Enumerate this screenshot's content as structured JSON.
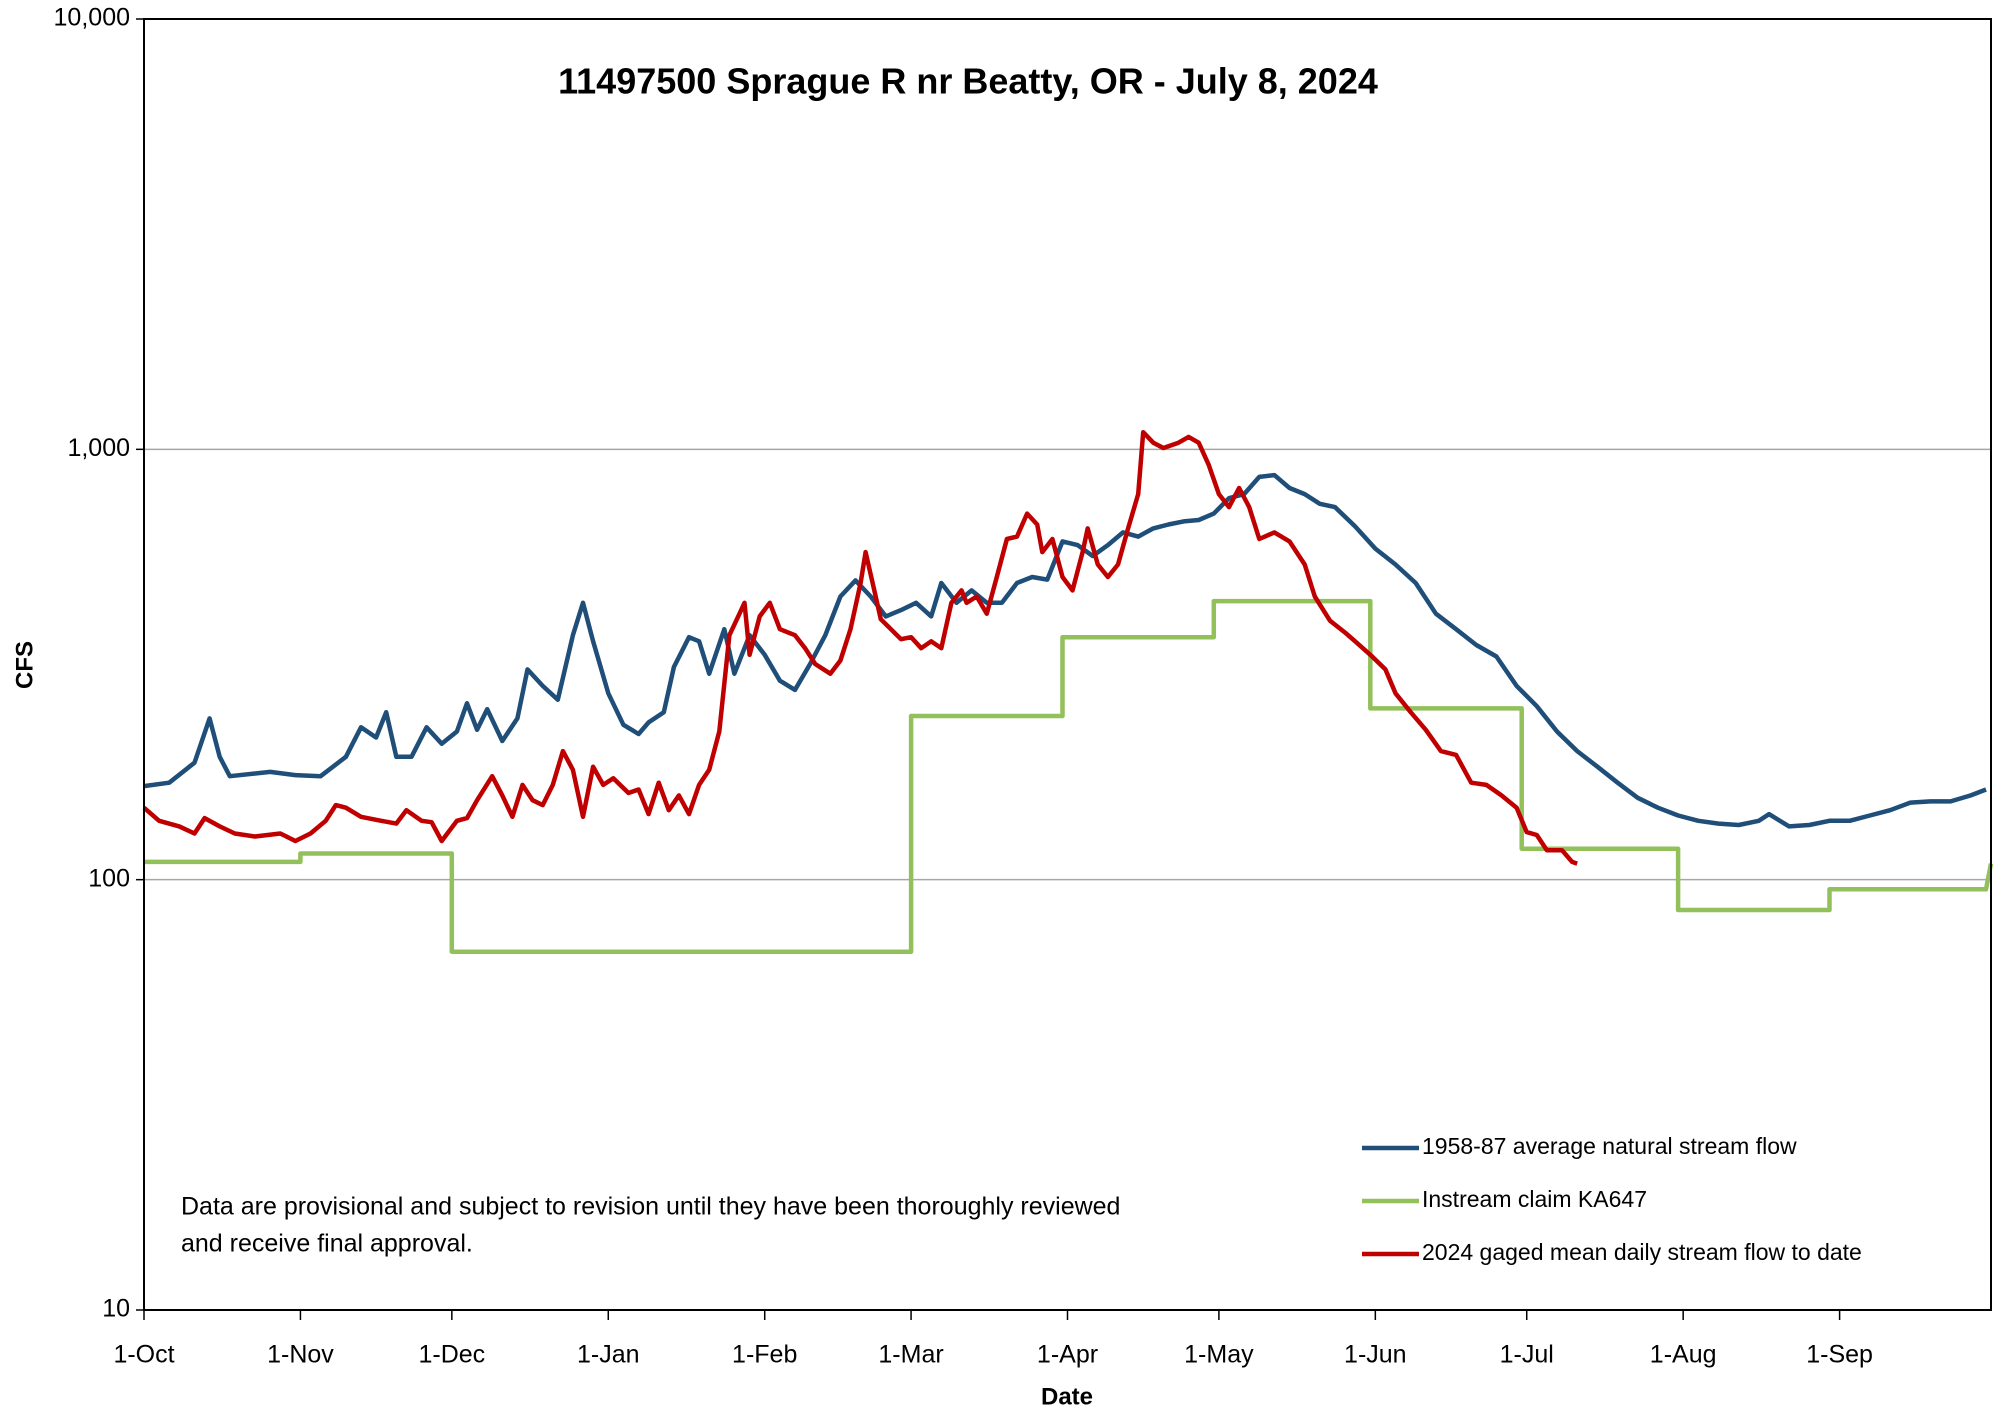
{
  "chart_data": {
    "type": "line",
    "title": "11497500 Sprague R nr Beatty, OR -  July 8, 2024",
    "xlabel": "Date",
    "ylabel": "CFS",
    "annotation": [
      "Data are provisional and subject to revision until they have been thoroughly reviewed",
      "and receive final approval."
    ],
    "log_y": true,
    "grid": true,
    "legend": "lower right",
    "xlim": [
      0,
      366
    ],
    "xticks": [
      {
        "value": 0,
        "label": "1-Oct"
      },
      {
        "value": 31,
        "label": "1-Nov"
      },
      {
        "value": 61,
        "label": "1-Dec"
      },
      {
        "value": 92,
        "label": "1-Jan"
      },
      {
        "value": 123,
        "label": "1-Feb"
      },
      {
        "value": 152,
        "label": "1-Mar"
      },
      {
        "value": 183,
        "label": "1-Apr"
      },
      {
        "value": 213,
        "label": "1-May"
      },
      {
        "value": 244,
        "label": "1-Jun"
      },
      {
        "value": 274,
        "label": "1-Jul"
      },
      {
        "value": 305,
        "label": "1-Aug"
      },
      {
        "value": 336,
        "label": "1-Sep"
      }
    ],
    "ylim": [
      10,
      10000
    ],
    "yticks": [
      10,
      100,
      {
        "value": 1000,
        "label": "1,000"
      },
      {
        "value": 10000,
        "label": "10,000"
      }
    ],
    "series": [
      {
        "name": "1958-87 average natural stream flow",
        "color": "#1f4e79",
        "x": [
          0,
          5,
          10,
          13,
          15,
          17,
          25,
          30,
          35,
          40,
          43,
          46,
          48,
          50,
          53,
          56,
          59,
          62,
          64,
          66,
          68,
          71,
          74,
          76,
          79,
          82,
          85,
          87,
          89,
          92,
          95,
          98,
          100,
          103,
          105,
          108,
          110,
          112,
          115,
          117,
          120,
          123,
          126,
          129,
          132,
          135,
          138,
          141,
          144,
          147,
          150,
          153,
          156,
          158,
          161,
          164,
          167,
          170,
          173,
          176,
          179,
          182,
          185,
          188,
          191,
          194,
          197,
          200,
          203,
          206,
          209,
          212,
          215,
          218,
          221,
          224,
          227,
          230,
          233,
          236,
          240,
          244,
          248,
          252,
          256,
          260,
          264,
          268,
          272,
          276,
          280,
          284,
          288,
          292,
          296,
          300,
          304,
          308,
          312,
          316,
          320,
          322,
          326,
          330,
          334,
          338,
          342,
          346,
          350,
          354,
          358,
          362,
          365
        ],
        "values": [
          165,
          168,
          187,
          237,
          193,
          174,
          178,
          175,
          174,
          193,
          226,
          214,
          245,
          193,
          193,
          226,
          207,
          221,
          257,
          223,
          249,
          210,
          237,
          308,
          282,
          262,
          370,
          440,
          358,
          271,
          229,
          218,
          232,
          245,
          312,
          366,
          358,
          301,
          382,
          301,
          370,
          333,
          290,
          276,
          317,
          370,
          455,
          496,
          455,
          409,
          423,
          440,
          409,
          489,
          440,
          470,
          440,
          440,
          489,
          505,
          498,
          611,
          599,
          565,
          599,
          641,
          627,
          655,
          669,
          680,
          685,
          709,
          770,
          787,
          863,
          871,
          813,
          787,
          747,
          734,
          662,
          588,
          540,
          489,
          415,
          382,
          351,
          330,
          282,
          253,
          221,
          199,
          183,
          168,
          155,
          147,
          141,
          137,
          135,
          134,
          137,
          142,
          133,
          134,
          137,
          137,
          141,
          145,
          151,
          152,
          152,
          157,
          162
        ]
      },
      {
        "name": "Instream claim KA647",
        "color": "#92c05a",
        "x": [
          0,
          31,
          31,
          61,
          61,
          152,
          152,
          182,
          182,
          212,
          212,
          243,
          243,
          273,
          273,
          304,
          304,
          334,
          334,
          365,
          366
        ],
        "values": [
          110,
          110,
          115,
          115,
          68,
          68,
          240,
          240,
          366,
          366,
          444,
          444,
          250,
          250,
          118,
          118,
          85,
          85,
          95,
          95,
          109
        ]
      },
      {
        "name": "2024 gaged mean daily stream flow to date",
        "color": "#c00000",
        "x": [
          0,
          3,
          7,
          10,
          12,
          15,
          18,
          22,
          27,
          30,
          33,
          36,
          38,
          40,
          43,
          47,
          50,
          52,
          55,
          57,
          59,
          62,
          64,
          66,
          69,
          71,
          73,
          75,
          77,
          79,
          81,
          83,
          85,
          87,
          89,
          91,
          93,
          96,
          98,
          100,
          102,
          104,
          106,
          108,
          110,
          112,
          114,
          116,
          118,
          119,
          120,
          122,
          124,
          126,
          129,
          131,
          133,
          136,
          138,
          140,
          142,
          143,
          145,
          146,
          148,
          150,
          152,
          154,
          156,
          158,
          160,
          162,
          163,
          165,
          167,
          169,
          171,
          173,
          175,
          177,
          178,
          180,
          182,
          184,
          186,
          187,
          189,
          191,
          193,
          195,
          197,
          198,
          200,
          202,
          205,
          207,
          209,
          211,
          213,
          215,
          217,
          219,
          221,
          224,
          227,
          230,
          232,
          235,
          238,
          240,
          243,
          246,
          248,
          251,
          254,
          257,
          260,
          263,
          266,
          269,
          272,
          274,
          276,
          278,
          281,
          283,
          284
        ],
        "values": [
          147,
          137,
          133,
          128,
          139,
          133,
          128,
          126,
          128,
          123,
          128,
          137,
          149,
          147,
          140,
          137,
          135,
          145,
          137,
          136,
          123,
          137,
          139,
          153,
          174,
          157,
          140,
          166,
          153,
          149,
          166,
          199,
          180,
          140,
          183,
          166,
          172,
          159,
          162,
          142,
          168,
          145,
          157,
          142,
          166,
          180,
          221,
          370,
          415,
          440,
          333,
          409,
          440,
          382,
          370,
          345,
          317,
          301,
          323,
          382,
          489,
          577,
          455,
          403,
          382,
          362,
          366,
          345,
          358,
          345,
          440,
          470,
          440,
          455,
          415,
          505,
          619,
          627,
          709,
          669,
          577,
          619,
          505,
          470,
          577,
          655,
          540,
          505,
          540,
          655,
          787,
          1096,
          1036,
          1007,
          1036,
          1069,
          1036,
          919,
          787,
          734,
          813,
          734,
          619,
          641,
          611,
          540,
          455,
          400,
          375,
          358,
          333,
          308,
          271,
          245,
          223,
          199,
          195,
          168,
          166,
          157,
          147,
          129,
          127,
          117,
          117,
          110,
          109
        ]
      }
    ]
  }
}
